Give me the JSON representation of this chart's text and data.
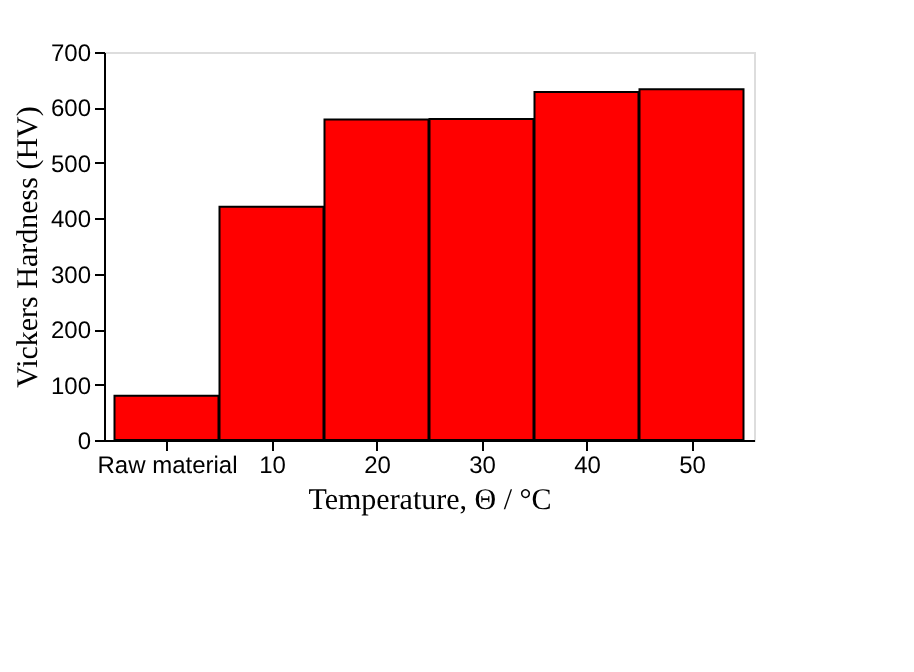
{
  "chart_data": {
    "type": "bar",
    "xlabel": "Temperature, Θ / °C",
    "ylabel": "Vickers Hardness (HV)",
    "categories": [
      "Raw material",
      "10",
      "20",
      "30",
      "40",
      "50"
    ],
    "values": [
      80,
      421,
      578,
      579,
      628,
      633
    ],
    "color": "#ff0000",
    "ylim": [
      0,
      700
    ],
    "yticks": [
      0,
      100,
      200,
      300,
      400,
      500,
      600,
      700
    ],
    "grid": false
  }
}
